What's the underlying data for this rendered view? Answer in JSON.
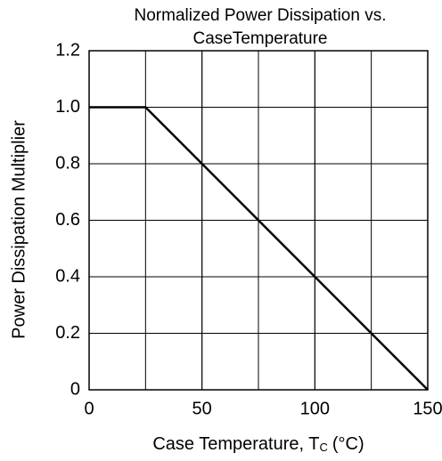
{
  "chart_data": {
    "type": "line",
    "title": [
      "Normalized Power Dissipation vs.",
      "CaseTemperature"
    ],
    "xlabel": {
      "text": "Case Temperature, T",
      "subscript": "C",
      "unit": "(°C)"
    },
    "ylabel": "Power Dissipation Multiplier",
    "x": [
      0,
      25,
      150
    ],
    "series": [
      {
        "color": "#000000",
        "values": [
          1,
          1,
          0
        ]
      }
    ],
    "xlim": [
      0,
      150
    ],
    "xticks": [
      0,
      50,
      100,
      150
    ],
    "xgrid": [
      25,
      50,
      75,
      100,
      125
    ],
    "ylim": [
      0,
      1.2
    ],
    "yticks": [
      0,
      0.2,
      0.4,
      0.6,
      0.8,
      {
        "value": 1,
        "label": "1.0"
      },
      1.2
    ],
    "grid": true
  }
}
